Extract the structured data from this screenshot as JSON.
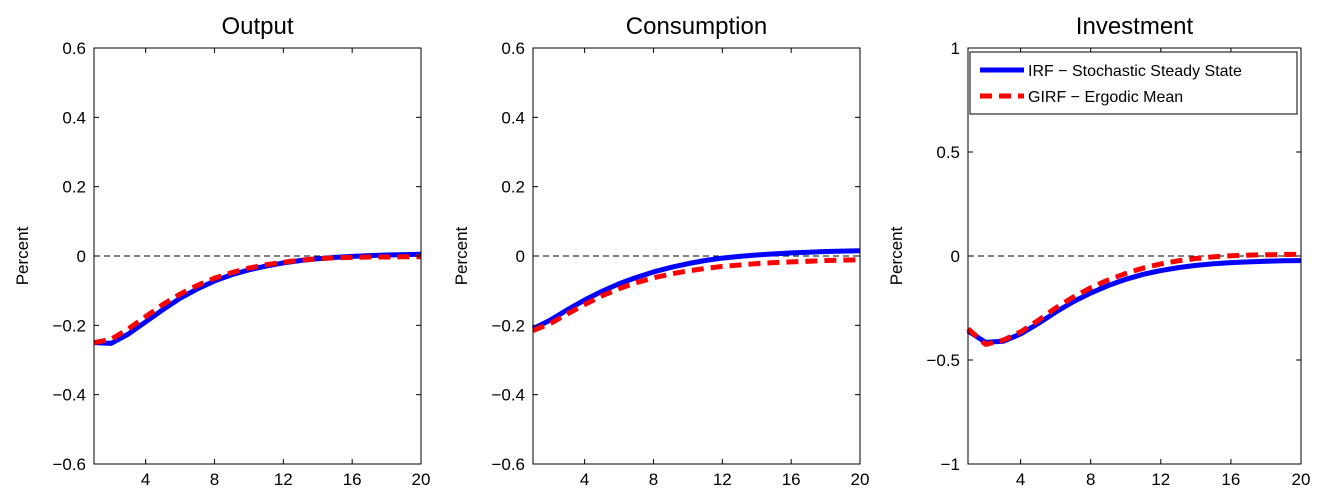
{
  "chart_data": [
    {
      "type": "line",
      "title": "Output",
      "xlabel": "",
      "ylabel": "Percent",
      "xlim": [
        1,
        20
      ],
      "ylim": [
        -0.6,
        0.6
      ],
      "xticks": [
        4,
        8,
        12,
        16,
        20
      ],
      "yticks": [
        -0.6,
        -0.4,
        -0.2,
        0,
        0.2,
        0.4,
        0.6
      ],
      "ytick_labels": [
        "−0.6",
        "−0.4",
        "−0.2",
        "0",
        "0.2",
        "0.4",
        "0.6"
      ],
      "reference_line": 0,
      "grid": false,
      "legend": null,
      "x": [
        1,
        2,
        3,
        4,
        5,
        6,
        7,
        8,
        9,
        10,
        11,
        12,
        13,
        14,
        15,
        16,
        17,
        18,
        19,
        20
      ],
      "series": [
        {
          "key": "irf",
          "values": [
            -0.25,
            -0.252,
            -0.225,
            -0.19,
            -0.155,
            -0.122,
            -0.095,
            -0.072,
            -0.054,
            -0.04,
            -0.029,
            -0.02,
            -0.013,
            -0.008,
            -0.004,
            -0.001,
            0.001,
            0.003,
            0.004,
            0.005
          ],
          "color": "#0000ff",
          "style": "solid"
        },
        {
          "key": "girf",
          "values": [
            -0.25,
            -0.24,
            -0.21,
            -0.175,
            -0.14,
            -0.11,
            -0.085,
            -0.064,
            -0.048,
            -0.035,
            -0.025,
            -0.018,
            -0.012,
            -0.008,
            -0.005,
            -0.004,
            -0.003,
            -0.003,
            -0.002,
            -0.002
          ],
          "color": "#ff0000",
          "style": "dashed"
        }
      ]
    },
    {
      "type": "line",
      "title": "Consumption",
      "xlabel": "",
      "ylabel": "Percent",
      "xlim": [
        1,
        20
      ],
      "ylim": [
        -0.6,
        0.6
      ],
      "xticks": [
        4,
        8,
        12,
        16,
        20
      ],
      "yticks": [
        -0.6,
        -0.4,
        -0.2,
        0,
        0.2,
        0.4,
        0.6
      ],
      "ytick_labels": [
        "−0.6",
        "−0.4",
        "−0.2",
        "0",
        "0.2",
        "0.4",
        "0.6"
      ],
      "reference_line": 0,
      "grid": false,
      "legend": null,
      "x": [
        1,
        2,
        3,
        4,
        5,
        6,
        7,
        8,
        9,
        10,
        11,
        12,
        13,
        14,
        15,
        16,
        17,
        18,
        19,
        20
      ],
      "series": [
        {
          "key": "irf",
          "values": [
            -0.21,
            -0.185,
            -0.155,
            -0.127,
            -0.102,
            -0.08,
            -0.062,
            -0.046,
            -0.033,
            -0.022,
            -0.013,
            -0.006,
            -0.001,
            0.003,
            0.006,
            0.009,
            0.011,
            0.013,
            0.014,
            0.015
          ],
          "color": "#0000ff",
          "style": "solid"
        },
        {
          "key": "girf",
          "values": [
            -0.215,
            -0.195,
            -0.167,
            -0.14,
            -0.115,
            -0.094,
            -0.077,
            -0.063,
            -0.052,
            -0.043,
            -0.036,
            -0.03,
            -0.026,
            -0.022,
            -0.019,
            -0.017,
            -0.015,
            -0.013,
            -0.012,
            -0.011
          ],
          "color": "#ff0000",
          "style": "dashed"
        }
      ]
    },
    {
      "type": "line",
      "title": "Investment",
      "xlabel": "",
      "ylabel": "Percent",
      "xlim": [
        1,
        20
      ],
      "ylim": [
        -1,
        1
      ],
      "xticks": [
        4,
        8,
        12,
        16,
        20
      ],
      "yticks": [
        -1,
        -0.5,
        0,
        0.5,
        1
      ],
      "ytick_labels": [
        "−1",
        "−0.5",
        "0",
        "0.5",
        "1"
      ],
      "reference_line": 0,
      "grid": false,
      "legend": "top-right",
      "x": [
        1,
        2,
        3,
        4,
        5,
        6,
        7,
        8,
        9,
        10,
        11,
        12,
        13,
        14,
        15,
        16,
        17,
        18,
        19,
        20
      ],
      "series": [
        {
          "key": "irf",
          "name": "IRF − Stochastic Steady State",
          "values": [
            -0.36,
            -0.415,
            -0.41,
            -0.375,
            -0.325,
            -0.27,
            -0.22,
            -0.178,
            -0.142,
            -0.112,
            -0.088,
            -0.07,
            -0.056,
            -0.045,
            -0.037,
            -0.032,
            -0.028,
            -0.025,
            -0.023,
            -0.022
          ],
          "color": "#0000ff",
          "style": "solid"
        },
        {
          "key": "girf",
          "name": "GIRF − Ergodic Mean",
          "values": [
            -0.35,
            -0.425,
            -0.405,
            -0.365,
            -0.31,
            -0.25,
            -0.198,
            -0.153,
            -0.115,
            -0.084,
            -0.058,
            -0.038,
            -0.023,
            -0.012,
            -0.004,
            0.001,
            0.004,
            0.006,
            0.007,
            0.008
          ],
          "color": "#ff0000",
          "style": "dashed"
        }
      ]
    }
  ]
}
